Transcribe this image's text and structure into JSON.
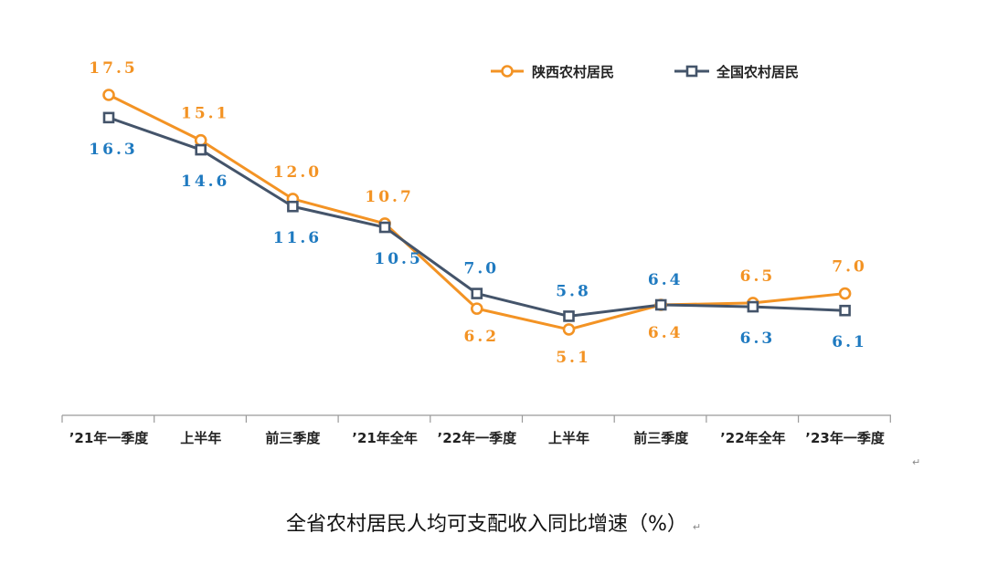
{
  "chart_data": {
    "type": "line",
    "title": "全省农村居民人均可支配收入同比增速（%）",
    "categories": [
      "’21年一季度",
      "上半年",
      "前三季度",
      "’21年全年",
      "’22年一季度",
      "上半年",
      "前三季度",
      "’22年全年",
      "’23年一季度"
    ],
    "series": [
      {
        "name": "陕西农村居民",
        "color": "#f39324",
        "marker": "circle",
        "values": [
          17.5,
          15.1,
          12.0,
          10.7,
          6.2,
          5.1,
          6.4,
          6.5,
          7.0
        ],
        "labels": [
          "17.5",
          "15.1",
          "12.0",
          "10.7",
          "6.2",
          "5.1",
          "6.4",
          "6.5",
          "7.0"
        ]
      },
      {
        "name": "全国农村居民",
        "color": "#44546a",
        "marker": "square",
        "label_color": "#1f7ac0",
        "values": [
          16.3,
          14.6,
          11.6,
          10.5,
          7.0,
          5.8,
          6.4,
          6.3,
          6.1
        ],
        "labels": [
          "16.3",
          "14.6",
          "11.6",
          "10.5",
          "7.0",
          "5.8",
          "6.4",
          "6.3",
          "6.1"
        ]
      }
    ],
    "legend_position": "top-right",
    "grid": false
  },
  "caption": "全省农村居民人均可支配收入同比增速（%）",
  "return_mark": "↵"
}
